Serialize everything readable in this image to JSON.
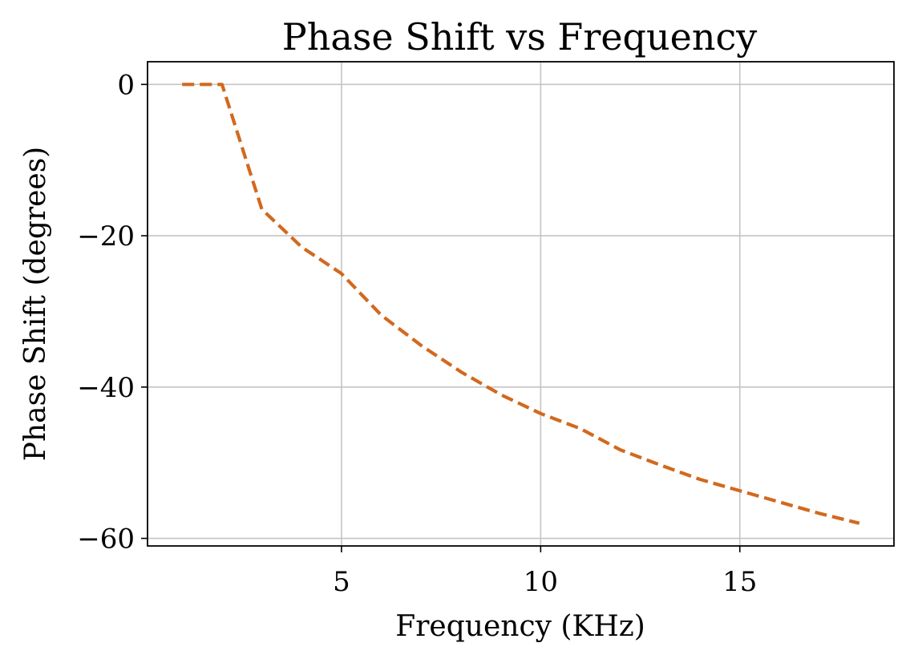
{
  "chart_data": {
    "type": "line",
    "title": "Phase Shift vs Frequency",
    "xlabel": "Frequency (KHz)",
    "ylabel": "Phase Shift (degrees)",
    "xlim": [
      0.13,
      18.87
    ],
    "ylim": [
      -61.0,
      3.0
    ],
    "xticks": [
      5,
      10,
      15
    ],
    "xtick_labels": [
      "5",
      "10",
      "15"
    ],
    "yticks": [
      0,
      -20,
      -40,
      -60
    ],
    "ytick_labels": [
      "0",
      "−20",
      "−40",
      "−60"
    ],
    "grid": true,
    "series": [
      {
        "name": "Phase Shift",
        "color": "#d2691e",
        "linestyle": "dashed",
        "x": [
          1,
          2,
          3,
          4,
          5,
          6,
          7,
          8,
          9,
          10,
          11,
          12,
          13,
          14,
          15,
          16,
          17,
          18
        ],
        "y": [
          0,
          0,
          -16.5,
          -21.5,
          -25,
          -30.5,
          -34.5,
          -38,
          -41,
          -43.5,
          -45.5,
          -48.3,
          -50.3,
          -52.2,
          -53.7,
          -55.2,
          -56.7,
          -58
        ]
      }
    ]
  }
}
